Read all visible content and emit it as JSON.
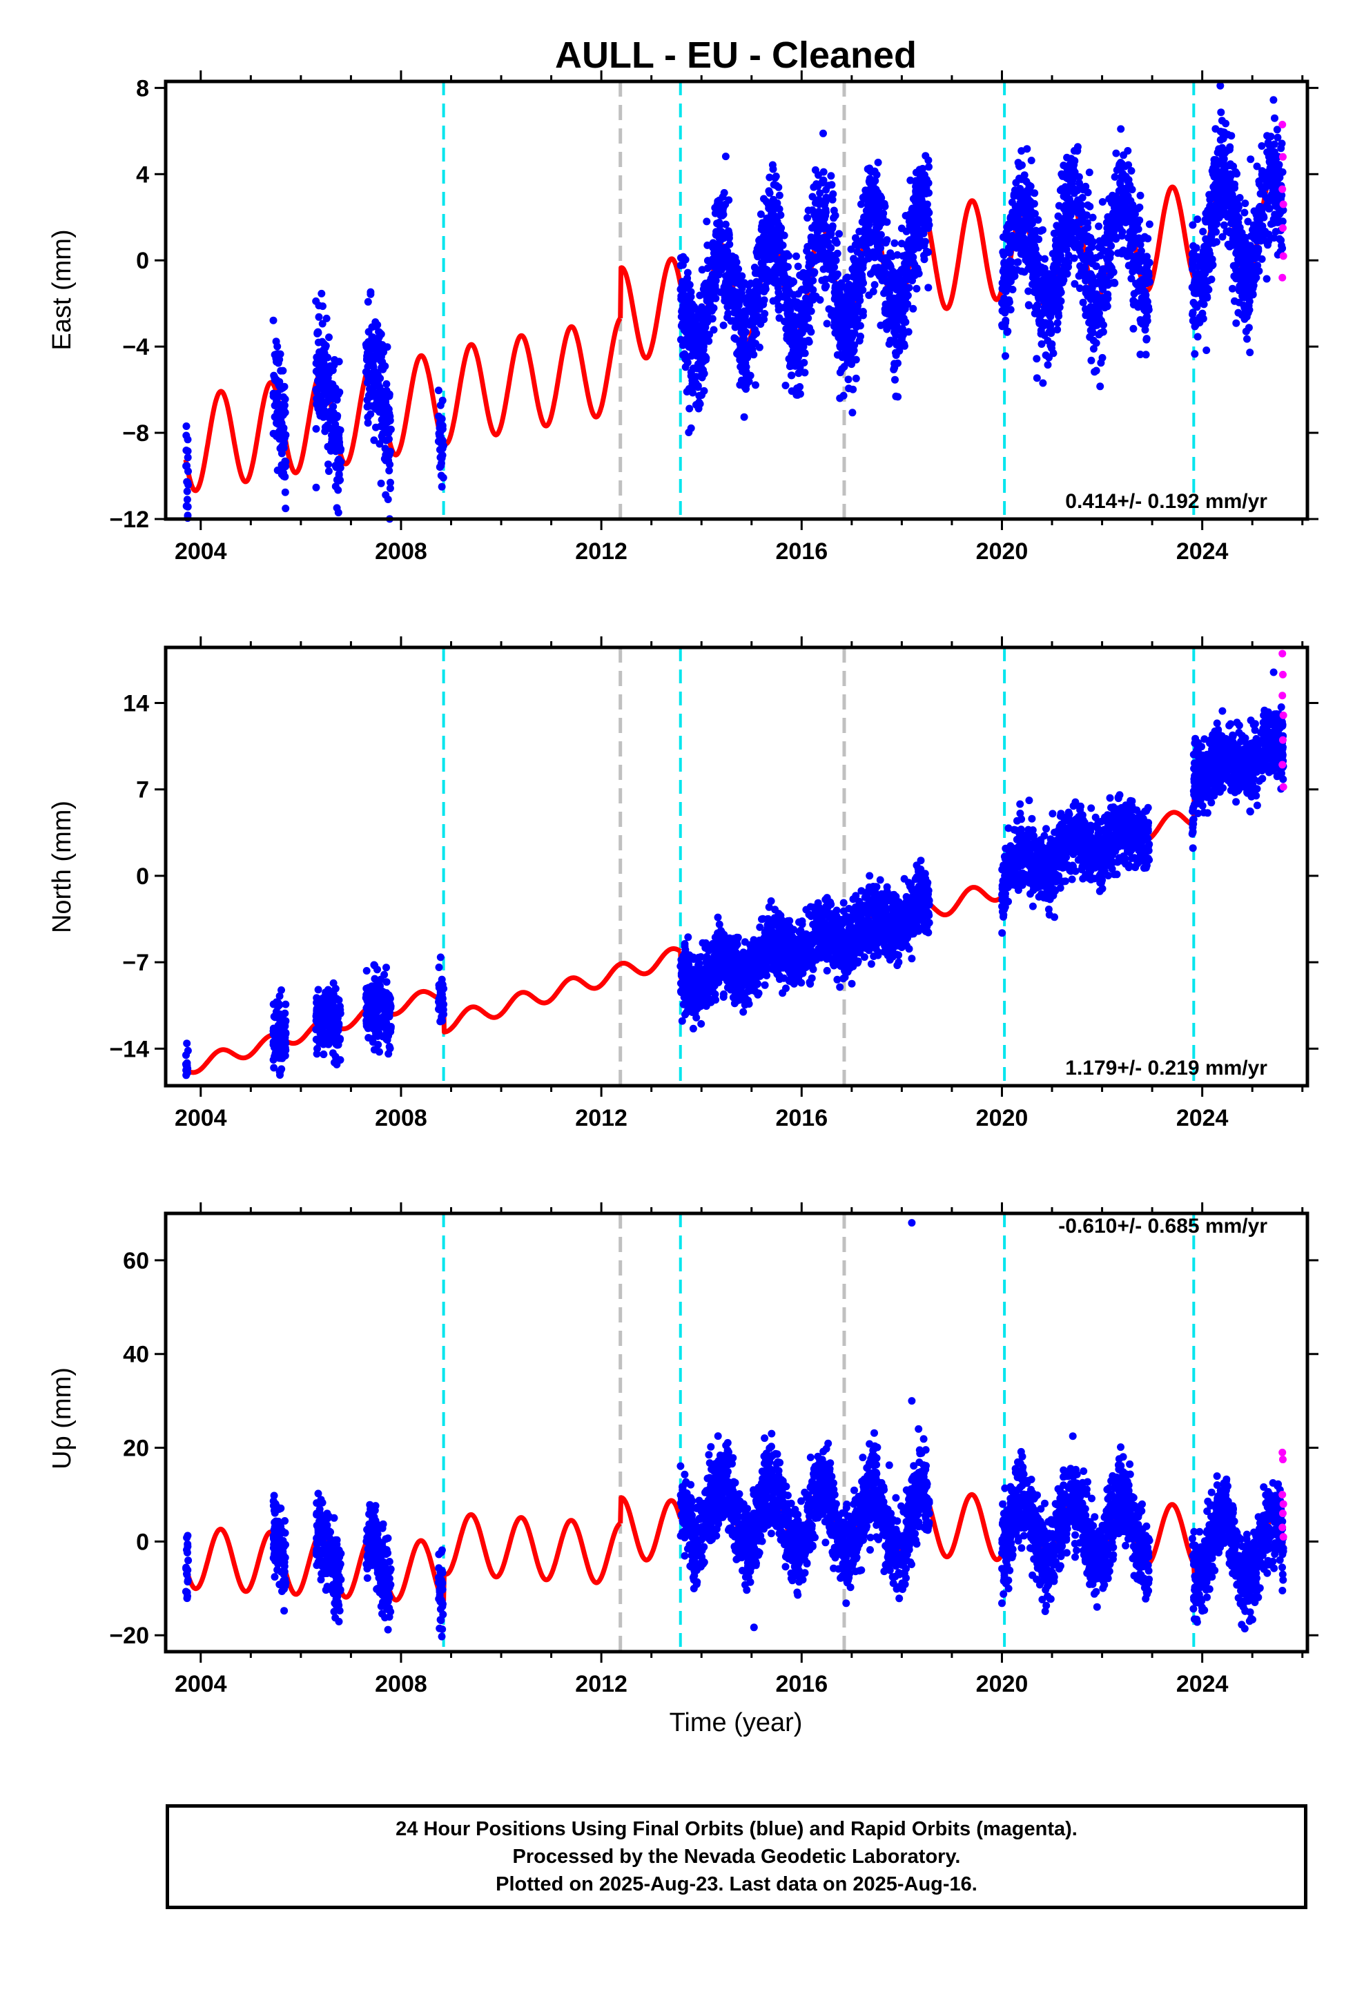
{
  "title": "AULL  - EU - Cleaned",
  "xlabel": "Time (year)",
  "caption": [
    "24 Hour Positions Using Final Orbits (blue) and Rapid Orbits (magenta).",
    "Processed by the Nevada Geodetic Laboratory.",
    "Plotted on 2025-Aug-23. Last data on 2025-Aug-16."
  ],
  "colors": {
    "final_orbits": "#0000ff",
    "rapid_orbits": "#ff00ff",
    "model": "#ff0000",
    "equipment_change": "#00e5ee",
    "unknown_step": "#c0c0c0"
  },
  "chart_data": [
    {
      "type": "scatter",
      "ylabel": "East (mm)",
      "xlim": [
        2003.3,
        2026.1
      ],
      "ylim": [
        -12,
        8.3
      ],
      "yticks": [
        8,
        4,
        0,
        -4,
        -8,
        -12
      ],
      "xticks": [
        2004,
        2008,
        2012,
        2016,
        2020,
        2024
      ],
      "rate_label": "0.414+/- 0.192 mm/yr",
      "rate_position": "bottom-right",
      "step_lines": {
        "equipment": [
          2008.85,
          2013.58,
          2020.05,
          2023.83
        ],
        "unknown": [
          2012.38,
          2016.85
        ]
      },
      "model": {
        "segments": [
          {
            "t0": 2003.7,
            "t1": 2008.85,
            "base": -7.5,
            "slope": 0.414,
            "amplitude": 2.2
          },
          {
            "t0": 2008.85,
            "t1": 2012.38,
            "base": -5.6,
            "slope": 0.414,
            "amplitude": 2.2
          },
          {
            "t0": 2012.38,
            "t1": 2013.58,
            "base": -2.3,
            "slope": 0.414,
            "amplitude": 2.2
          },
          {
            "t0": 2013.58,
            "t1": 2020.05,
            "base": -0.7,
            "slope": 0.414,
            "amplitude": 2.4
          },
          {
            "t0": 2020.05,
            "t1": 2023.83,
            "base": 0.5,
            "slope": 0.414,
            "amplitude": 2.3
          },
          {
            "t0": 2023.83,
            "t1": 2025.62,
            "base": 1.4,
            "slope": 0.414,
            "amplitude": 2.3
          }
        ]
      },
      "data_periods": [
        [
          2003.7,
          2003.75
        ],
        [
          2005.45,
          2005.7
        ],
        [
          2006.3,
          2006.8
        ],
        [
          2007.3,
          2007.8
        ],
        [
          2008.75,
          2008.85
        ],
        [
          2013.58,
          2018.55
        ],
        [
          2020.0,
          2022.95
        ],
        [
          2023.8,
          2025.62
        ]
      ],
      "scatter_sigma": 1.4,
      "rapid_points": [
        {
          "x": 2025.6,
          "y": 6.3
        },
        {
          "x": 2025.61,
          "y": 4.8
        },
        {
          "x": 2025.6,
          "y": 3.3
        },
        {
          "x": 2025.61,
          "y": 1.5
        },
        {
          "x": 2025.62,
          "y": 0.2
        },
        {
          "x": 2025.6,
          "y": -0.8
        },
        {
          "x": 2025.62,
          "y": 2.6
        }
      ]
    },
    {
      "type": "scatter",
      "ylabel": "North (mm)",
      "xlim": [
        2003.3,
        2026.1
      ],
      "ylim": [
        -17,
        18.5
      ],
      "yticks": [
        14,
        7,
        0,
        -7,
        -14
      ],
      "xticks": [
        2004,
        2008,
        2012,
        2016,
        2020,
        2024
      ],
      "rate_label": "1.179+/- 0.219 mm/yr",
      "rate_position": "bottom-right",
      "step_lines": {
        "equipment": [
          2008.85,
          2013.58,
          2020.05,
          2023.83
        ],
        "unknown": [
          2012.38,
          2016.85
        ]
      },
      "model": {
        "segments": [
          {
            "t0": 2003.7,
            "t1": 2008.85,
            "base": -12.5,
            "slope": 1.179,
            "amplitude": 0.6
          },
          {
            "t0": 2008.85,
            "t1": 2013.58,
            "base": -9.2,
            "slope": 1.179,
            "amplitude": 0.7
          },
          {
            "t0": 2013.58,
            "t1": 2020.05,
            "base": -4.8,
            "slope": 1.179,
            "amplitude": 0.8
          },
          {
            "t0": 2020.05,
            "t1": 2023.83,
            "base": 2.6,
            "slope": 1.179,
            "amplitude": 0.8
          },
          {
            "t0": 2023.83,
            "t1": 2025.62,
            "base": 9.3,
            "slope": 1.179,
            "amplitude": 0.8
          }
        ]
      },
      "data_periods": [
        [
          2003.7,
          2003.75
        ],
        [
          2005.45,
          2005.7
        ],
        [
          2006.3,
          2006.8
        ],
        [
          2007.3,
          2007.8
        ],
        [
          2008.75,
          2008.85
        ],
        [
          2013.58,
          2018.55
        ],
        [
          2020.0,
          2022.95
        ],
        [
          2023.8,
          2025.62
        ]
      ],
      "scatter_sigma": 1.3,
      "rapid_points": [
        {
          "x": 2025.6,
          "y": 18.0
        },
        {
          "x": 2025.61,
          "y": 16.3
        },
        {
          "x": 2025.6,
          "y": 14.6
        },
        {
          "x": 2025.62,
          "y": 13.0
        },
        {
          "x": 2025.61,
          "y": 11.0
        },
        {
          "x": 2025.6,
          "y": 9.0
        },
        {
          "x": 2025.62,
          "y": 7.2
        }
      ]
    },
    {
      "type": "scatter",
      "ylabel": "Up (mm)",
      "xlim": [
        2003.3,
        2026.1
      ],
      "ylim": [
        -23.5,
        70
      ],
      "yticks": [
        60,
        40,
        20,
        0,
        -20
      ],
      "xticks": [
        2004,
        2008,
        2012,
        2016,
        2020,
        2024
      ],
      "rate_label": "-0.610+/- 0.685 mm/yr",
      "rate_position": "top-right",
      "step_lines": {
        "equipment": [
          2008.85,
          2013.58,
          2020.05,
          2023.83
        ],
        "unknown": [
          2012.38,
          2016.85
        ]
      },
      "model": {
        "segments": [
          {
            "t0": 2003.7,
            "t1": 2008.85,
            "base": -5.0,
            "slope": -0.61,
            "amplitude": 6.5
          },
          {
            "t0": 2008.85,
            "t1": 2012.38,
            "base": -1.5,
            "slope": -0.61,
            "amplitude": 6.5
          },
          {
            "t0": 2012.38,
            "t1": 2013.58,
            "base": 2.5,
            "slope": -0.61,
            "amplitude": 6.5
          },
          {
            "t0": 2013.58,
            "t1": 2020.05,
            "base": 4.8,
            "slope": -0.61,
            "amplitude": 6.8
          },
          {
            "t0": 2020.05,
            "t1": 2023.83,
            "base": 2.3,
            "slope": -0.61,
            "amplitude": 6.5
          },
          {
            "t0": 2023.83,
            "t1": 2025.62,
            "base": -1.5,
            "slope": -0.61,
            "amplitude": 6.5
          }
        ]
      },
      "data_periods": [
        [
          2003.7,
          2003.75
        ],
        [
          2005.45,
          2005.7
        ],
        [
          2006.3,
          2006.8
        ],
        [
          2007.3,
          2007.8
        ],
        [
          2008.75,
          2008.85
        ],
        [
          2013.58,
          2018.55
        ],
        [
          2020.0,
          2022.95
        ],
        [
          2023.8,
          2025.62
        ]
      ],
      "scatter_sigma": 4.2,
      "outliers": [
        {
          "x": 2018.2,
          "y": 68
        },
        {
          "x": 2018.2,
          "y": 30
        }
      ],
      "rapid_points": [
        {
          "x": 2025.6,
          "y": 19
        },
        {
          "x": 2025.61,
          "y": 17.5
        },
        {
          "x": 2025.6,
          "y": 10
        },
        {
          "x": 2025.62,
          "y": 8
        },
        {
          "x": 2025.61,
          "y": 6
        },
        {
          "x": 2025.6,
          "y": 3
        },
        {
          "x": 2025.62,
          "y": 1
        }
      ]
    }
  ]
}
